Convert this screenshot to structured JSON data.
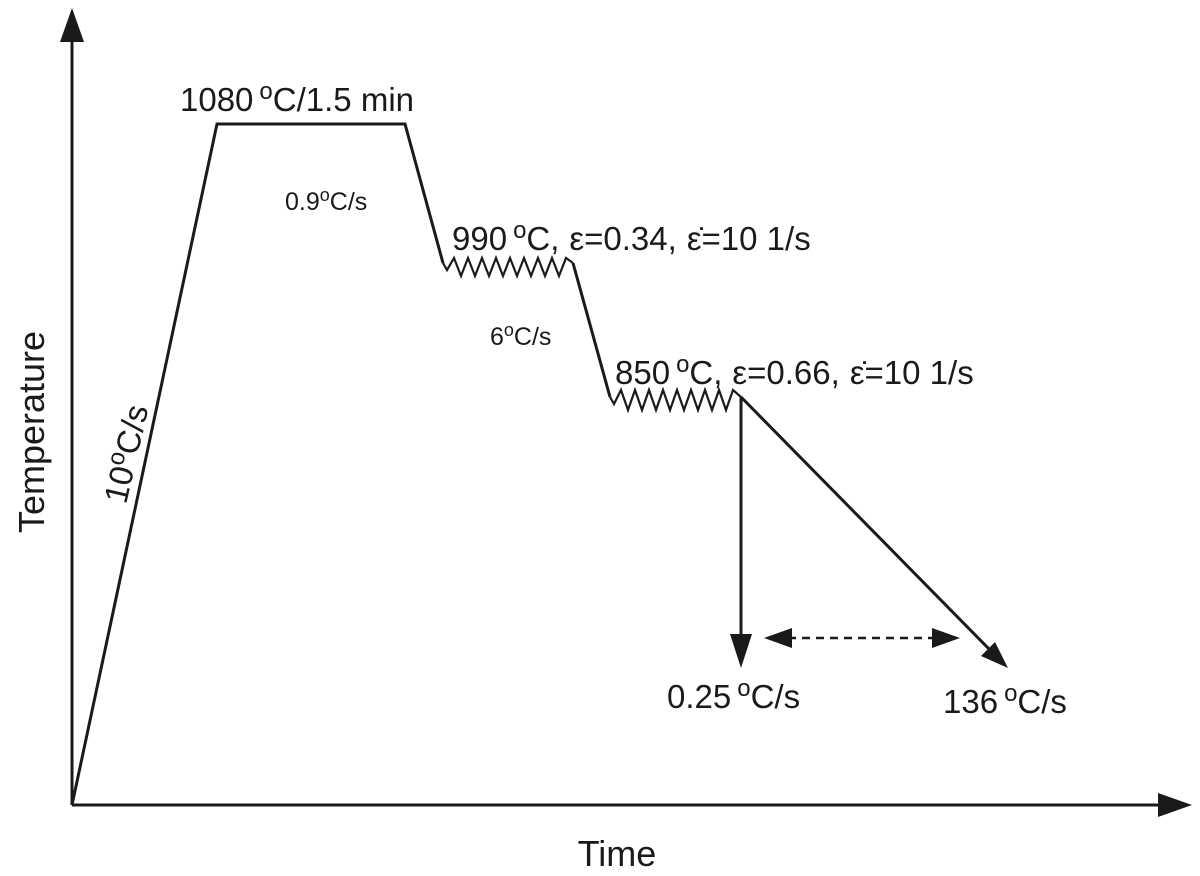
{
  "axes": {
    "x_label": "Time",
    "y_label": "Temperature"
  },
  "annotations": {
    "heating_rate": {
      "value": "10",
      "unit_deg": "o",
      "unit": "C/s"
    },
    "soak": {
      "value": "1080",
      "unit_deg": "o",
      "unit": "C/1.5 min"
    },
    "cool_rate_1": {
      "value": "0.9",
      "unit_deg": "o",
      "unit": "C/s"
    },
    "pass_1": {
      "temp": "990",
      "unit_deg": "o",
      "unit": "C,",
      "strain": "ε=0.34,",
      "strain_rate": "ε̇=10 1/s"
    },
    "cool_rate_2": {
      "value": "6",
      "unit_deg": "o",
      "unit": "C/s"
    },
    "pass_2": {
      "temp": "850",
      "unit_deg": "o",
      "unit": "C,",
      "strain": "ε=0.66,",
      "strain_rate": "ε̇=10 1/s"
    },
    "final_slow": {
      "value": "0.25",
      "unit_deg": "o",
      "unit": "C/s"
    },
    "final_fast": {
      "value": "136",
      "unit_deg": "o",
      "unit": "C/s"
    }
  },
  "colors": {
    "ink": "#1a1a1a",
    "background": "#ffffff"
  }
}
